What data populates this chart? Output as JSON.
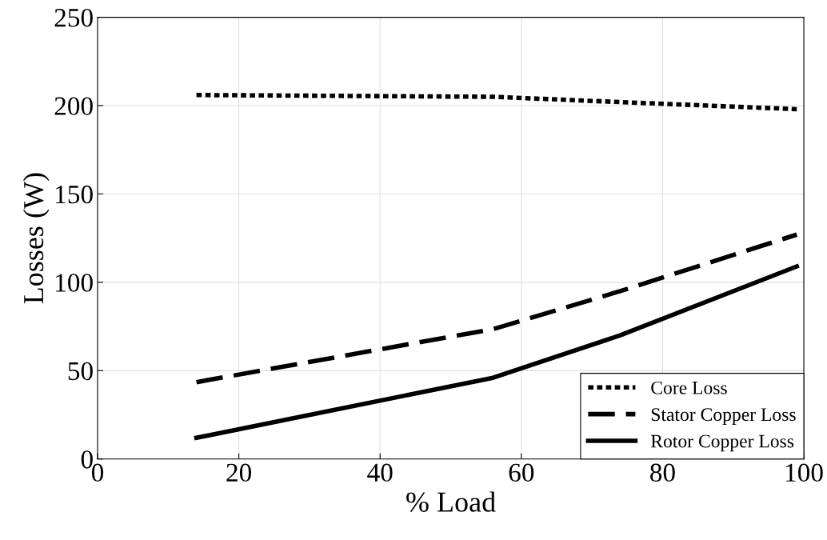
{
  "chart_data": {
    "type": "line",
    "xlabel": "% Load",
    "ylabel": "Losses (W)",
    "xlim": [
      0,
      100
    ],
    "xticks": [
      0,
      20,
      40,
      60,
      80,
      100
    ],
    "ylim": [
      0,
      250
    ],
    "yticks": [
      0,
      50,
      100,
      150,
      200,
      250
    ],
    "grid": true,
    "legend": "bottom right",
    "marker": "none",
    "series": [
      {
        "name": "Core Loss",
        "color": "#000000",
        "line_style": "dotted",
        "x": [
          14,
          56,
          74,
          99
        ],
        "values": [
          206,
          205,
          202,
          198
        ]
      },
      {
        "name": "Stator Copper Loss",
        "color": "#000000",
        "line_style": "dashed",
        "x": [
          14,
          56,
          74,
          99
        ],
        "values": [
          43.5,
          73.5,
          95,
          127
        ]
      },
      {
        "name": "Rotor Copper Loss",
        "color": "#000000",
        "line_style": "solid",
        "x": [
          14,
          56,
          74,
          99
        ],
        "values": [
          12,
          46,
          70,
          109
        ]
      }
    ]
  }
}
